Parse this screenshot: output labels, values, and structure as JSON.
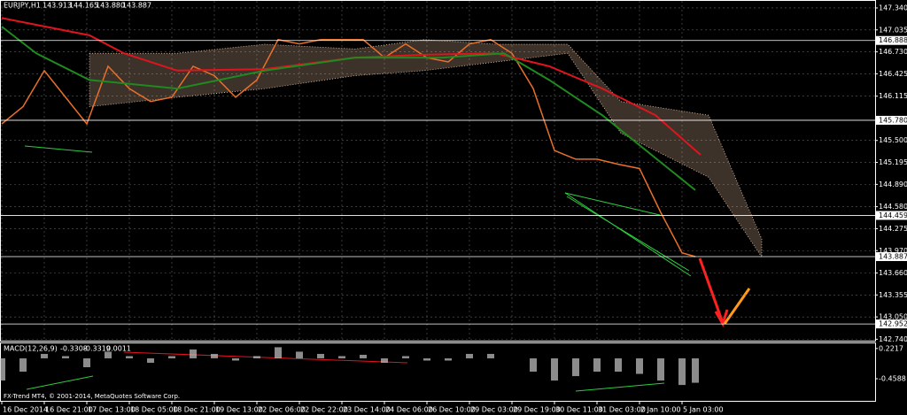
{
  "chart_data": {
    "type": "line",
    "title": "EURJPY,H1",
    "quote": [
      "143.913",
      "144.165",
      "143.880",
      "143.887"
    ],
    "x": [
      0,
      8,
      16,
      24,
      32,
      40,
      48,
      56,
      64,
      72,
      80,
      88,
      96,
      104,
      112,
      120,
      128,
      136,
      144,
      152,
      160,
      168,
      176,
      184,
      192,
      200,
      208,
      216,
      224,
      232,
      240,
      248,
      256,
      261
    ],
    "series": [
      {
        "color": "#e8702a",
        "values": [
          145.73,
          145.97,
          146.47,
          146.1,
          145.73,
          146.53,
          146.22,
          146.04,
          146.1,
          146.53,
          146.4,
          146.1,
          146.34,
          146.9,
          146.84,
          146.9,
          146.9,
          146.9,
          146.65,
          146.84,
          146.65,
          146.59,
          146.84,
          146.9,
          146.71,
          146.22,
          145.36,
          145.24,
          145.24,
          145.17,
          145.11,
          144.5,
          143.94,
          143.887
        ]
      },
      {
        "color": "#e0141e",
        "x": [
          0,
          33,
          46,
          66,
          99,
          133,
          159,
          186,
          206,
          226,
          246,
          263
        ],
        "values": [
          147.2,
          146.96,
          146.71,
          146.47,
          146.49,
          146.65,
          146.69,
          146.71,
          146.53,
          146.22,
          145.85,
          145.3
        ]
      },
      {
        "color": "#1f8a1f",
        "x": [
          0,
          13,
          33,
          66,
          99,
          133,
          166,
          189,
          206,
          226,
          261
        ],
        "values": [
          147.08,
          146.71,
          146.34,
          146.22,
          146.47,
          146.65,
          146.65,
          146.71,
          146.34,
          145.85,
          144.81
        ]
      }
    ],
    "cloud": {
      "color": "#f0c8a8",
      "x": [
        33,
        66,
        99,
        133,
        159,
        186,
        213,
        233,
        266,
        286
      ],
      "upper": [
        146.71,
        146.71,
        146.835,
        146.77,
        146.9,
        146.835,
        146.835,
        146.04,
        145.85,
        144.13
      ],
      "lower": [
        145.97,
        146.1,
        146.22,
        146.4,
        146.47,
        146.59,
        146.71,
        145.6,
        144.99,
        143.88
      ]
    },
    "levels": [
      146.888,
      {
        "value": 145.78,
        "label": "145.780"
      },
      144.459,
      143.887,
      142.952
    ],
    "xlim": [
      0,
      329
    ],
    "xticks": [
      {
        "value": 0,
        "label": "16 Dec 2014"
      },
      {
        "value": 16,
        "label": "16 Dec 21:00"
      },
      {
        "value": 32,
        "label": "17 Dec 13:00"
      },
      {
        "value": 48,
        "label": "18 Dec 05:00"
      },
      {
        "value": 64,
        "label": "18 Dec 21:00"
      },
      {
        "value": 80,
        "label": "19 Dec 13:00"
      },
      {
        "value": 96,
        "label": "22 Dec 06:00"
      },
      {
        "value": 112,
        "label": "22 Dec 22:00"
      },
      {
        "value": 128,
        "label": "23 Dec 14:00"
      },
      {
        "value": 144,
        "label": "24 Dec 06:00"
      },
      {
        "value": 160,
        "label": "26 Dec 10:00"
      },
      {
        "value": 176,
        "label": "29 Dec 03:00"
      },
      {
        "value": 192,
        "label": "29 Dec 19:00"
      },
      {
        "value": 208,
        "label": "30 Dec 11:00"
      },
      {
        "value": 224,
        "label": "31 Dec 03:00"
      },
      {
        "value": 240,
        "label": "2 Jan 10:00"
      },
      {
        "value": 256,
        "label": "5 Jan 03:00"
      }
    ],
    "ylim": [
      142.72,
      147.45
    ],
    "yticks": [
      {
        "value": 147.34,
        "label": "147.340"
      },
      147.035,
      {
        "value": 146.73,
        "label": "146.730"
      },
      146.425,
      146.115,
      {
        "value": 145.5,
        "label": "145.500"
      },
      145.195,
      {
        "value": 144.89,
        "label": "144.890"
      },
      {
        "value": 144.58,
        "label": "144.580"
      },
      144.275,
      {
        "value": 143.97,
        "label": "143.970"
      },
      {
        "value": 143.66,
        "label": "143.660"
      },
      143.355,
      {
        "value": 143.05,
        "label": "143.050"
      },
      {
        "value": 142.74,
        "label": "142.740"
      }
    ],
    "grid": true,
    "indicator": {
      "type": "bar",
      "title": "MACD(12,26,9)",
      "readout": [
        "-0.3308",
        "-0.3319",
        "0.0011"
      ],
      "color": "#c8c8c8",
      "values": [
        -0.5,
        -0.3,
        0.1,
        0.05,
        -0.2,
        0.15,
        0.05,
        -0.1,
        0.05,
        0.2,
        0.1,
        -0.05,
        0.05,
        0.25,
        0.15,
        0.1,
        0.05,
        0.08,
        -0.1,
        0.05,
        -0.05,
        -0.05,
        0.1,
        0.1,
        0.0,
        -0.3,
        -0.5,
        -0.4,
        -0.3,
        -0.3,
        -0.35,
        -0.5,
        -0.6,
        -0.55
      ],
      "ylim": [
        -0.957,
        0.358
      ],
      "yticks": [
        0.2217,
        -0.4588
      ]
    },
    "footer": "FX-Trend MT4, © 2001-2014, MetaQuotes Software Corp."
  }
}
